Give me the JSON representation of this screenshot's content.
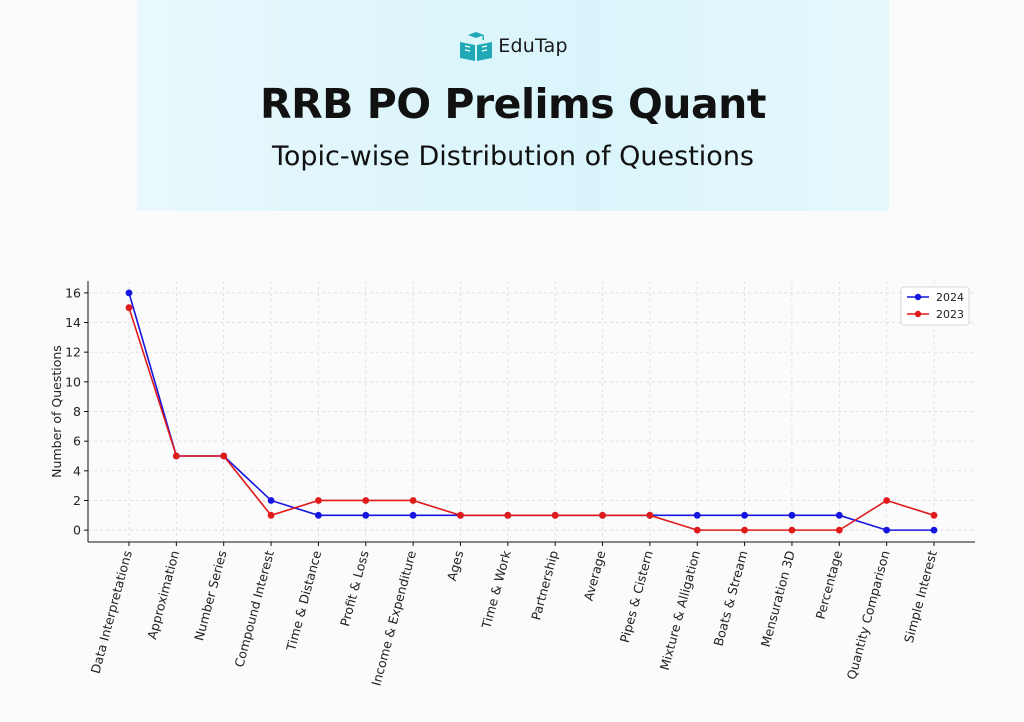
{
  "header": {
    "brand": "EduTap",
    "title": "RRB PO Prelims Quant",
    "subtitle": "Topic-wise Distribution of Questions"
  },
  "colors": {
    "banner": "#dff6fb",
    "logo": "#1fa9b6",
    "series_2024": "#1515e0",
    "series_2023": "#e01b1b"
  },
  "chart_data": {
    "type": "line",
    "title": "",
    "xlabel": "",
    "ylabel": "Number of Questions",
    "ylim": [
      -0.8,
      16.8
    ],
    "yticks": [
      0,
      2,
      4,
      6,
      8,
      10,
      12,
      14,
      16
    ],
    "grid": true,
    "legend_position": "top-right",
    "categories": [
      "Data Interpretations",
      "Approximation",
      "Number Series",
      "Compound Interest",
      "Time & Distance",
      "Profit & Loss",
      "Income & Expenditure",
      "Ages",
      "Time & Work",
      "Partnership",
      "Average",
      "Pipes & Cistern",
      "Mixture & Alligation",
      "Boats & Stream",
      "Mensuration 3D",
      "Percentage",
      "Quantity Comparison",
      "Simple Interest"
    ],
    "series": [
      {
        "name": "2024",
        "color": "#1515e0",
        "values": [
          16,
          5,
          5,
          2,
          1,
          1,
          1,
          1,
          1,
          1,
          1,
          1,
          1,
          1,
          1,
          1,
          0,
          0
        ]
      },
      {
        "name": "2023",
        "color": "#e01b1b",
        "values": [
          15,
          5,
          5,
          1,
          2,
          2,
          2,
          1,
          1,
          1,
          1,
          1,
          0,
          0,
          0,
          0,
          2,
          1
        ]
      }
    ]
  }
}
